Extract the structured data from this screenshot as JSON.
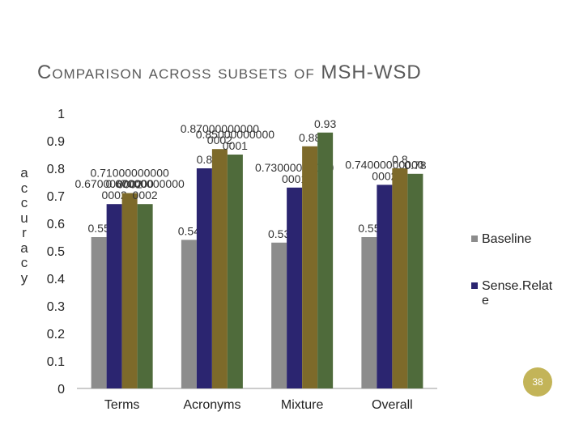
{
  "slide": {
    "title": "Comparison across subsets of MSH-WSD",
    "page_number": "38"
  },
  "chart_data": {
    "type": "bar",
    "title": "Comparison across subsets of MSH-WSD",
    "ylabel": "accuracy",
    "xlabel": "",
    "ylim": [
      0,
      1
    ],
    "yticks": [
      "0",
      "0.1",
      "0.2",
      "0.3",
      "0.4",
      "0.5",
      "0.6",
      "0.7",
      "0.8",
      "0.9",
      "1"
    ],
    "categories": [
      "Terms",
      "Acronyms",
      "Mixture",
      "Overall"
    ],
    "legend_position": "right",
    "grid": false,
    "series": [
      {
        "name": "Baseline",
        "color": "#8c8c8c",
        "values": [
          0.55,
          0.54,
          0.53,
          0.55
        ],
        "labels": [
          "0.55",
          "0.54",
          "0.53",
          "0.55"
        ]
      },
      {
        "name": "Sense.Relate",
        "color": "#2b2570",
        "values": [
          0.67,
          0.8,
          0.73,
          0.74
        ],
        "labels": [
          "0.67000000000\n0002",
          "0.8",
          "0.73000000000\n0001",
          "0.74000000000\n0002"
        ]
      },
      {
        "name": "",
        "color": "#7d6a2a",
        "values": [
          0.71,
          0.87,
          0.88,
          0.8
        ],
        "labels": [
          "0.71000000000\n0002",
          "0.87000000000\n0002",
          "0.88",
          "0.8"
        ]
      },
      {
        "name": "",
        "color": "#4f6b3b",
        "values": [
          0.67,
          0.85,
          0.93,
          0.78
        ],
        "labels": [
          "0.67000000000\n0002",
          "0.85000000000\n0001",
          "0.93",
          "0.78"
        ]
      }
    ]
  }
}
